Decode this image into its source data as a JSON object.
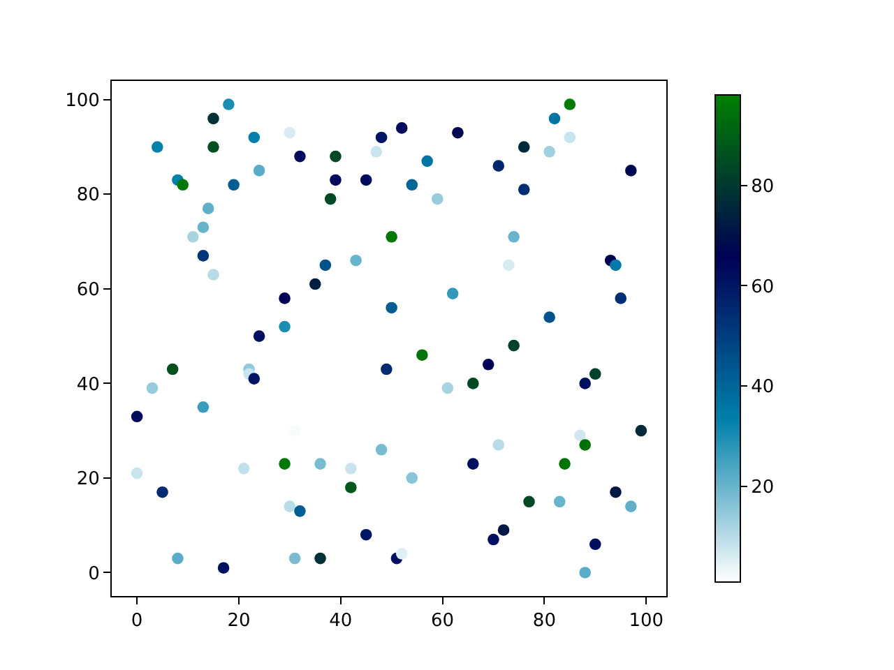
{
  "chart_data": {
    "type": "scatter",
    "marker": "circle",
    "x": [
      0,
      0,
      3,
      4,
      5,
      7,
      8,
      8,
      9,
      11,
      13,
      13,
      13,
      14,
      15,
      15,
      15,
      17,
      18,
      19,
      21,
      22,
      22,
      23,
      23,
      24,
      24,
      30,
      29,
      29,
      29,
      30,
      32,
      31,
      31,
      32,
      35,
      36,
      36,
      37,
      38,
      39,
      39,
      42,
      42,
      43,
      45,
      45,
      47,
      48,
      48,
      49,
      50,
      50,
      51,
      52,
      52,
      54,
      54,
      56,
      57,
      59,
      61,
      62,
      63,
      66,
      66,
      69,
      70,
      71,
      71,
      72,
      73,
      74,
      74,
      76,
      76,
      77,
      81,
      81,
      82,
      83,
      84,
      85,
      85,
      87,
      88,
      88,
      88,
      90,
      90,
      93,
      94,
      94,
      95,
      97,
      97,
      99
    ],
    "values": [
      33,
      21,
      39,
      90,
      17,
      43,
      83,
      3,
      82,
      71,
      73,
      67,
      35,
      77,
      63,
      96,
      90,
      1,
      99,
      82,
      22,
      43,
      42,
      41,
      92,
      50,
      85,
      93,
      58,
      52,
      23,
      14,
      88,
      30,
      3,
      13,
      61,
      23,
      3,
      65,
      79,
      88,
      83,
      22,
      18,
      66,
      83,
      8,
      89,
      92,
      26,
      43,
      71,
      56,
      3,
      4,
      94,
      82,
      20,
      46,
      87,
      79,
      39,
      59,
      93,
      40,
      23,
      44,
      7,
      86,
      27,
      9,
      65,
      71,
      48,
      90,
      81,
      15,
      89,
      54,
      96,
      15,
      23,
      99,
      92,
      29,
      27,
      40,
      0,
      42,
      6,
      66,
      65,
      17,
      58,
      85,
      14,
      30
    ],
    "cvalues": [
      63,
      8,
      14,
      33,
      55,
      86,
      33,
      22,
      96,
      12,
      20,
      52,
      26,
      21,
      10,
      78,
      86,
      62,
      30,
      42,
      9,
      15,
      8,
      60,
      33,
      62,
      22,
      6,
      66,
      30,
      96,
      10,
      63,
      2,
      18,
      42,
      73,
      18,
      78,
      45,
      84,
      84,
      63,
      8,
      88,
      20,
      63,
      60,
      8,
      60,
      18,
      55,
      96,
      42,
      62,
      5,
      63,
      40,
      16,
      95,
      36,
      14,
      12,
      27,
      67,
      84,
      62,
      66,
      62,
      56,
      10,
      72,
      6,
      20,
      82,
      76,
      54,
      84,
      13,
      45,
      36,
      20,
      95,
      97,
      8,
      7,
      94,
      62,
      22,
      82,
      62,
      66,
      35,
      72,
      54,
      68,
      21,
      76
    ],
    "clim": [
      1,
      98
    ],
    "cticks": [
      20,
      40,
      60,
      80
    ],
    "xlim": [
      -4.95,
      103.95
    ],
    "ylim": [
      -4.95,
      103.95
    ],
    "xticks": [
      0,
      20,
      40,
      60,
      80,
      100
    ],
    "yticks": [
      0,
      20,
      40,
      60,
      80,
      100
    ]
  }
}
